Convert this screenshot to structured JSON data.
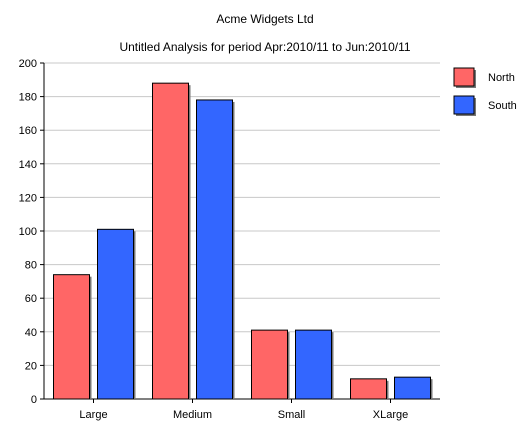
{
  "chart_data": {
    "type": "bar",
    "title": "Acme Widgets Ltd",
    "subtitle": "Untitled Analysis for period Apr:2010/11 to Jun:2010/11",
    "categories": [
      "Large",
      "Medium",
      "Small",
      "XLarge"
    ],
    "series": [
      {
        "name": "North",
        "color": "#ff6666",
        "values": [
          74,
          188,
          41,
          12
        ]
      },
      {
        "name": "South",
        "color": "#3366ff",
        "values": [
          101,
          178,
          41,
          13
        ]
      }
    ],
    "ylim": [
      0,
      200
    ],
    "yticks": [
      0,
      20,
      40,
      60,
      80,
      100,
      120,
      140,
      160,
      180,
      200
    ],
    "grid": true,
    "legend_position": "top-right"
  }
}
